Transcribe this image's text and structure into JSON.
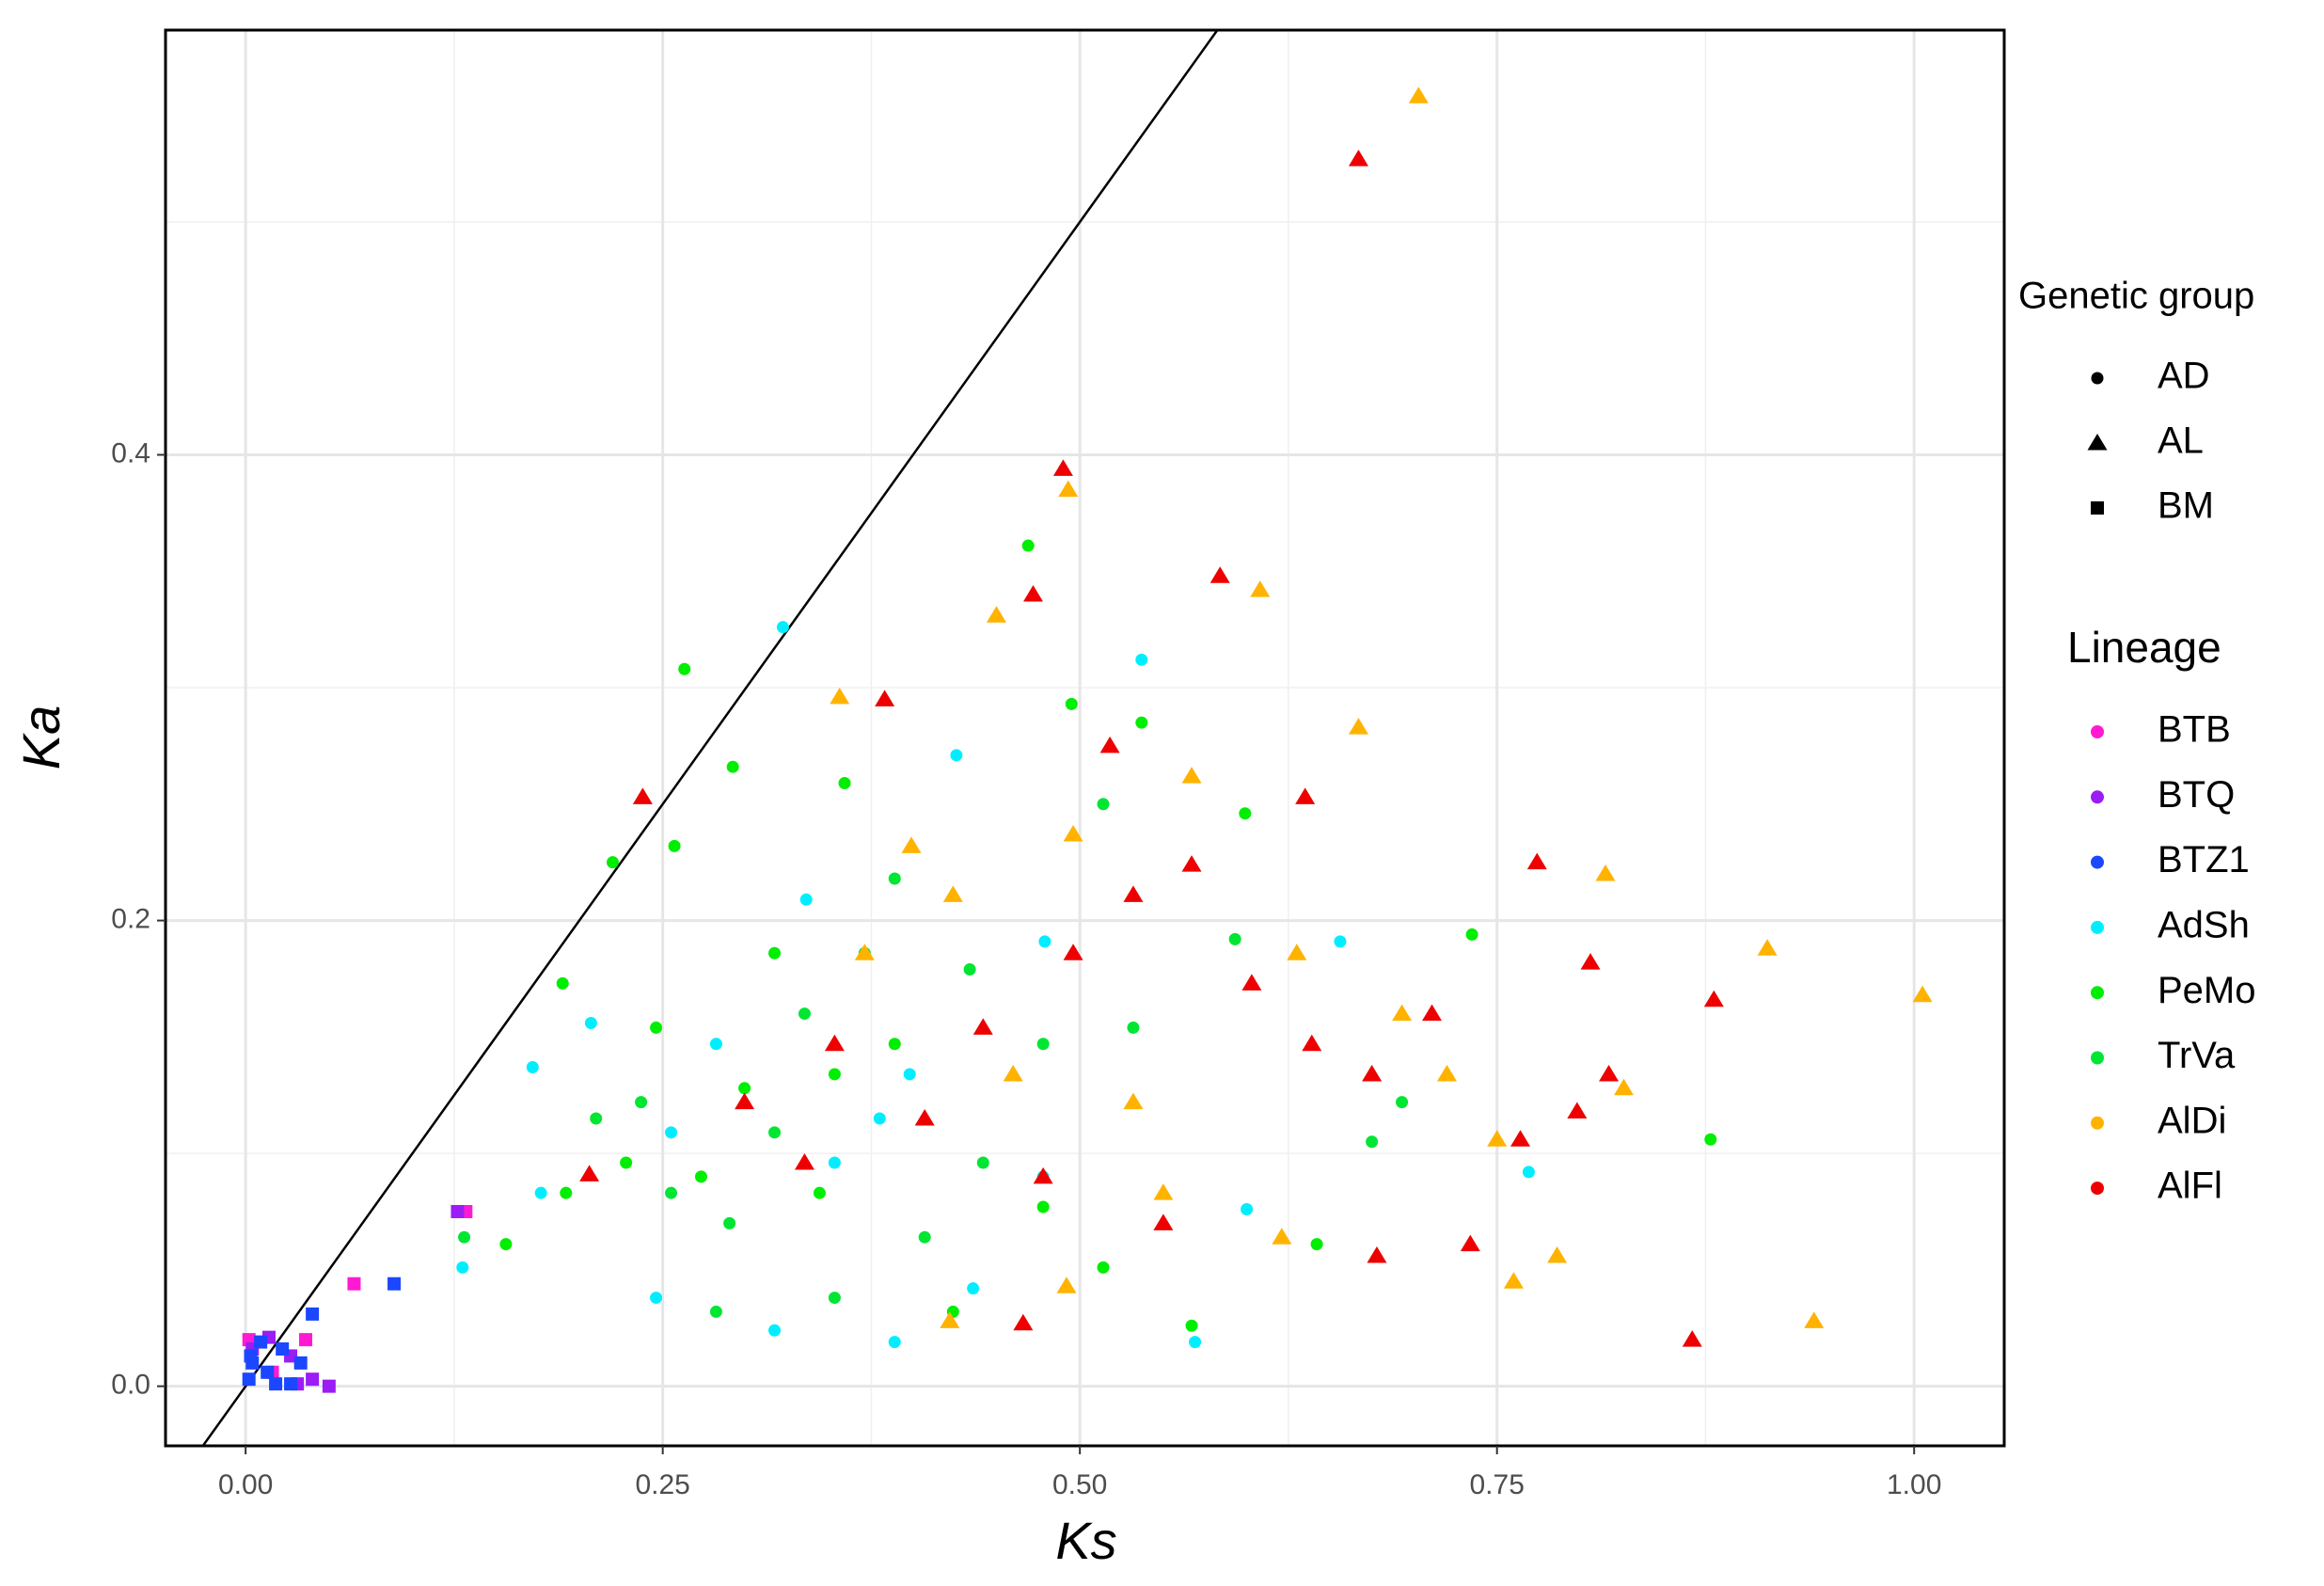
{
  "chart_data": {
    "type": "scatter",
    "x_label": "Ks",
    "y_label": "Ka",
    "xlim": [
      -0.048,
      1.054
    ],
    "ylim": [
      -0.0256,
      0.5824
    ],
    "xticks": [
      {
        "value": 0,
        "label": "0.00"
      },
      0.25,
      {
        "value": 0.5,
        "label": "0.50"
      },
      0.75,
      {
        "value": 1,
        "label": "1.00"
      }
    ],
    "yticks": [
      {
        "value": 0,
        "label": "0.0"
      },
      0.2,
      0.4
    ],
    "x_minor_ticks": [
      0.125,
      0.375,
      0.625,
      0.875
    ],
    "y_minor_ticks": [
      0.1,
      0.3,
      0.5
    ],
    "grid": true,
    "reference_line": {
      "slope": 1,
      "intercept": 0
    },
    "shape_legend": {
      "title": "Genetic group",
      "items": [
        {
          "name": "AD",
          "shape": "circle"
        },
        {
          "name": "AL",
          "shape": "triangle"
        },
        {
          "name": "BM",
          "shape": "square"
        }
      ]
    },
    "legend_title": "Lineage",
    "series": [
      {
        "name": "BTB",
        "color": "#ff1ad1",
        "shape": "square",
        "x": [
          0.065,
          0.132,
          0.002,
          0.036,
          0.016
        ],
        "values": [
          0.044,
          0.075,
          0.02,
          0.02,
          0.006
        ]
      },
      {
        "name": "BTQ",
        "color": "#9b1cf5",
        "shape": "square",
        "x": [
          0.127,
          0.014,
          0.05,
          0.04,
          0.027,
          0.004,
          0.031
        ],
        "values": [
          0.075,
          0.021,
          0.0,
          0.003,
          0.013,
          0.016,
          0.001
        ]
      },
      {
        "name": "BTZ1",
        "color": "#1a47ff",
        "shape": "square",
        "x": [
          0.089,
          0.04,
          0.002,
          0.004,
          0.013,
          0.022,
          0.009,
          0.027,
          0.033,
          0.018,
          0.003
        ],
        "values": [
          0.044,
          0.031,
          0.003,
          0.01,
          0.006,
          0.016,
          0.019,
          0.001,
          0.01,
          0.001,
          0.013
        ]
      },
      {
        "name": "AdSh",
        "color": "#00eeff",
        "shape": "circle",
        "x": [
          0.322,
          0.537,
          0.479,
          0.656,
          0.769,
          0.172,
          0.177,
          0.207,
          0.246,
          0.317,
          0.353,
          0.389,
          0.436,
          0.569,
          0.6,
          0.426,
          0.336,
          0.282,
          0.398,
          0.478,
          0.255,
          0.13,
          0.38
        ],
        "values": [
          0.326,
          0.312,
          0.191,
          0.191,
          0.092,
          0.137,
          0.083,
          0.156,
          0.038,
          0.024,
          0.096,
          0.019,
          0.042,
          0.019,
          0.076,
          0.271,
          0.209,
          0.147,
          0.134,
          0.09,
          0.109,
          0.051,
          0.115
        ]
      },
      {
        "name": "PeMo",
        "color": "#00ee00",
        "shape": "circle",
        "x": [
          0.263,
          0.469,
          0.292,
          0.537,
          0.495,
          0.359,
          0.22,
          0.257,
          0.735,
          0.878,
          0.642,
          0.567,
          0.19,
          0.156,
          0.246,
          0.299,
          0.344,
          0.317,
          0.389,
          0.424,
          0.478,
          0.514,
          0.599,
          0.192,
          0.273,
          0.353,
          0.228
        ],
        "values": [
          0.308,
          0.361,
          0.266,
          0.285,
          0.293,
          0.259,
          0.225,
          0.232,
          0.194,
          0.106,
          0.061,
          0.026,
          0.173,
          0.061,
          0.154,
          0.128,
          0.083,
          0.186,
          0.147,
          0.032,
          0.077,
          0.051,
          0.246,
          0.083,
          0.09,
          0.134,
          0.096
        ]
      },
      {
        "name": "TrVa",
        "color": "#00e632",
        "shape": "circle",
        "x": [
          0.131,
          0.21,
          0.255,
          0.282,
          0.317,
          0.353,
          0.407,
          0.442,
          0.478,
          0.532,
          0.593,
          0.335,
          0.29,
          0.237,
          0.371,
          0.434,
          0.693,
          0.675,
          0.514,
          0.389
        ],
        "values": [
          0.064,
          0.115,
          0.083,
          0.032,
          0.109,
          0.038,
          0.064,
          0.096,
          0.147,
          0.154,
          0.192,
          0.16,
          0.07,
          0.122,
          0.186,
          0.179,
          0.122,
          0.105,
          0.25,
          0.218
        ]
      },
      {
        "name": "AlDi",
        "color": "#ffb300",
        "shape": "triangle",
        "x": [
          0.703,
          0.493,
          0.608,
          0.45,
          0.356,
          0.667,
          0.815,
          0.912,
          1.005,
          0.94,
          0.786,
          0.826,
          0.76,
          0.399,
          0.496,
          0.567,
          0.63,
          0.693,
          0.72,
          0.75,
          0.621,
          0.55,
          0.492,
          0.422,
          0.46,
          0.371,
          0.424,
          0.532
        ],
        "values": [
          0.554,
          0.385,
          0.342,
          0.331,
          0.296,
          0.283,
          0.22,
          0.188,
          0.168,
          0.028,
          0.056,
          0.128,
          0.045,
          0.232,
          0.237,
          0.262,
          0.186,
          0.16,
          0.134,
          0.106,
          0.064,
          0.083,
          0.043,
          0.028,
          0.134,
          0.186,
          0.211,
          0.122
        ]
      },
      {
        "name": "AlFl",
        "color": "#ee0000",
        "shape": "triangle",
        "x": [
          0.667,
          0.49,
          0.584,
          0.472,
          0.383,
          0.238,
          0.518,
          0.774,
          0.806,
          0.88,
          0.867,
          0.817,
          0.798,
          0.734,
          0.678,
          0.635,
          0.466,
          0.206,
          0.299,
          0.353,
          0.407,
          0.442,
          0.496,
          0.532,
          0.567,
          0.603,
          0.639,
          0.675,
          0.764,
          0.711,
          0.478,
          0.55,
          0.335
        ],
        "values": [
          0.527,
          0.394,
          0.348,
          0.34,
          0.295,
          0.253,
          0.275,
          0.225,
          0.182,
          0.166,
          0.02,
          0.134,
          0.118,
          0.061,
          0.056,
          0.253,
          0.027,
          0.091,
          0.122,
          0.147,
          0.115,
          0.154,
          0.186,
          0.211,
          0.224,
          0.173,
          0.147,
          0.134,
          0.106,
          0.16,
          0.09,
          0.07,
          0.096
        ]
      }
    ]
  }
}
